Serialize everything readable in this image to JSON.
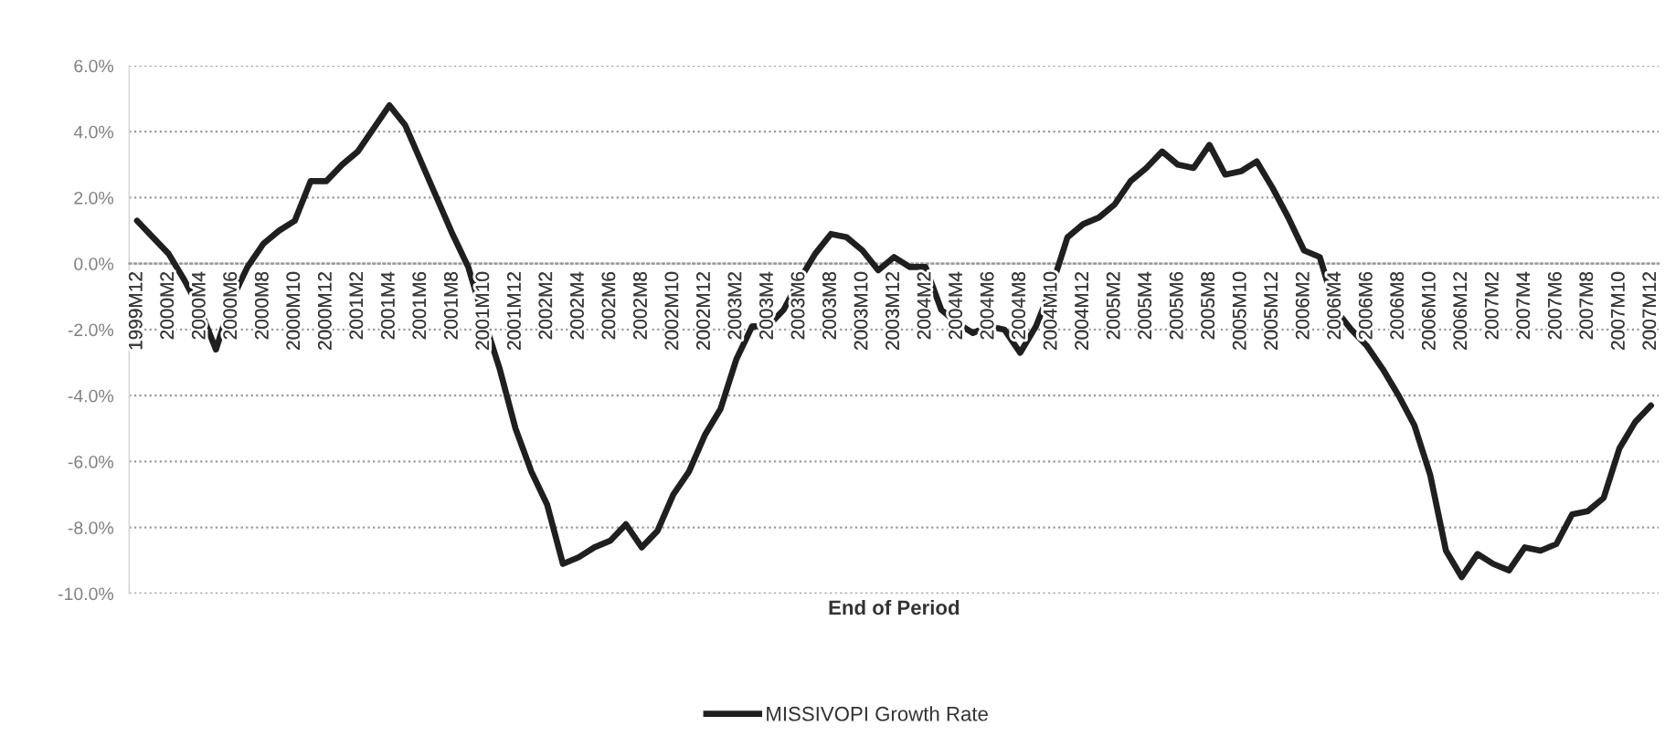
{
  "chart_data": {
    "type": "line",
    "xlabel": "End of Period",
    "categories": [
      "1999M12",
      null,
      "2000M2",
      null,
      "2000M4",
      null,
      "2000M6",
      null,
      "2000M8",
      null,
      "2000M10",
      null,
      "2000M12",
      null,
      "2001M2",
      null,
      "2001M4",
      null,
      "2001M6",
      null,
      "2001M8",
      null,
      "2001M10",
      null,
      "2001M12",
      null,
      "2002M2",
      null,
      "2002M4",
      null,
      "2002M6",
      null,
      "2002M8",
      null,
      "2002M10",
      null,
      "2002M12",
      null,
      "2003M2",
      null,
      "2003M4",
      null,
      "2003M6",
      null,
      "2003M8",
      null,
      "2003M10",
      null,
      "2003M12",
      null,
      "2004M2",
      null,
      "2004M4",
      null,
      "2004M6",
      null,
      "2004M8",
      null,
      "2004M10",
      null,
      "2004M12",
      null,
      "2005M2",
      null,
      "2005M4",
      null,
      "2005M6",
      null,
      "2005M8",
      null,
      "2005M10",
      null,
      "2005M12",
      null,
      "2006M2",
      null,
      "2006M4",
      null,
      "2006M6",
      null,
      "2006M8",
      null,
      "2006M10",
      null,
      "2006M12",
      null,
      "2007M2",
      null,
      "2007M4",
      null,
      "2007M6",
      null,
      "2007M8",
      null,
      "2007M10",
      null,
      "2007M12"
    ],
    "series": [
      {
        "name": "MISSIVOPI Growth Rate",
        "color": "#1f1f1f",
        "values": [
          1.3,
          0.8,
          0.3,
          -0.5,
          -1.4,
          -2.6,
          -1.1,
          -0.1,
          0.6,
          1.0,
          1.3,
          2.5,
          2.5,
          3.0,
          3.4,
          4.1,
          4.8,
          4.2,
          3.1,
          2.0,
          0.9,
          -0.1,
          -1.7,
          -3.2,
          -5.0,
          -6.3,
          -7.3,
          -9.1,
          -8.9,
          -8.6,
          -8.4,
          -7.9,
          -8.6,
          -8.1,
          -7.0,
          -6.3,
          -5.2,
          -4.4,
          -2.9,
          -1.9,
          -1.9,
          -1.4,
          -0.5,
          0.3,
          0.9,
          0.8,
          0.4,
          -0.2,
          0.2,
          -0.1,
          -0.1,
          -1.4,
          -1.8,
          -2.1,
          -1.9,
          -2.0,
          -2.7,
          -1.9,
          -0.7,
          0.8,
          1.2,
          1.4,
          1.8,
          2.5,
          2.9,
          3.4,
          3.0,
          2.9,
          3.6,
          2.7,
          2.8,
          3.1,
          2.3,
          1.4,
          0.4,
          0.2,
          -1.4,
          -2.0,
          -2.5,
          -3.2,
          -4.0,
          -4.9,
          -6.4,
          -8.7,
          -9.5,
          -8.8,
          -9.1,
          -9.3,
          -8.6,
          -8.7,
          -8.5,
          -7.6,
          -7.5,
          -7.1,
          -5.6,
          -4.8,
          -4.3
        ]
      }
    ],
    "ylim": [
      -10,
      6
    ],
    "yticks": [
      {
        "value": -10,
        "label": "-10.0%"
      },
      {
        "value": -8,
        "label": "-8.0%"
      },
      {
        "value": -6,
        "label": "-6.0%"
      },
      {
        "value": -4,
        "label": "-4.0%"
      },
      {
        "value": -2,
        "label": "-2.0%"
      },
      {
        "value": 0,
        "label": "0.0%"
      },
      {
        "value": 2,
        "label": "2.0%"
      },
      {
        "value": 4,
        "label": "4.0%"
      },
      {
        "value": 6,
        "label": "6.0%"
      }
    ],
    "grid": "y",
    "legend": "bottom"
  }
}
